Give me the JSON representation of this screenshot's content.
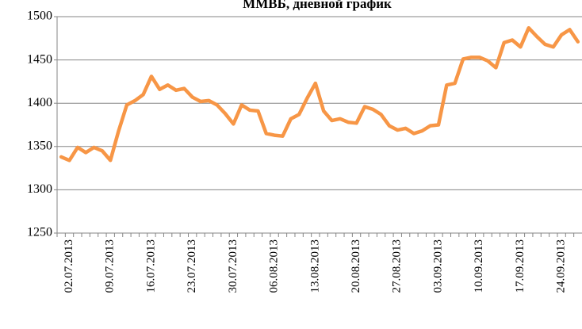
{
  "chart_data": {
    "type": "line",
    "title": "ММВБ, дневной график",
    "categories": [
      null,
      "02.07.2013",
      null,
      null,
      null,
      null,
      "09.07.2013",
      null,
      null,
      null,
      null,
      "16.07.2013",
      null,
      null,
      null,
      null,
      "23.07.2013",
      null,
      null,
      null,
      null,
      "30.07.2013",
      null,
      null,
      null,
      null,
      "06.08.2013",
      null,
      null,
      null,
      null,
      "13.08.2013",
      null,
      null,
      null,
      null,
      "20.08.2013",
      null,
      null,
      null,
      null,
      "27.08.2013",
      null,
      null,
      null,
      null,
      "03.09.2013",
      null,
      null,
      null,
      null,
      "10.09.2013",
      null,
      null,
      null,
      null,
      "17.09.2013",
      null,
      null,
      null,
      null,
      "24.09.2013",
      null,
      null
    ],
    "series": [
      {
        "color": "#f79646",
        "values": [
          1338,
          1334,
          1349,
          1343,
          1349,
          1345,
          1334,
          1368,
          1398,
          1403,
          1410,
          1431,
          1416,
          1421,
          1415,
          1417,
          1407,
          1402,
          1403,
          1398,
          1388,
          1376,
          1398,
          1392,
          1391,
          1365,
          1363,
          1362,
          1382,
          1387,
          1406,
          1423,
          1391,
          1380,
          1382,
          1378,
          1377,
          1396,
          1393,
          1387,
          1374,
          1369,
          1371,
          1365,
          1368,
          1374,
          1375,
          1421,
          1423,
          1451,
          1453,
          1453,
          1449,
          1441,
          1470,
          1473,
          1465,
          1487,
          1477,
          1468,
          1465,
          1479,
          1485,
          1471
        ]
      }
    ],
    "ylim": [
      1250,
      1500
    ],
    "yticks": [
      1250,
      1300,
      1350,
      1400,
      1450,
      1500
    ],
    "grid": true
  }
}
